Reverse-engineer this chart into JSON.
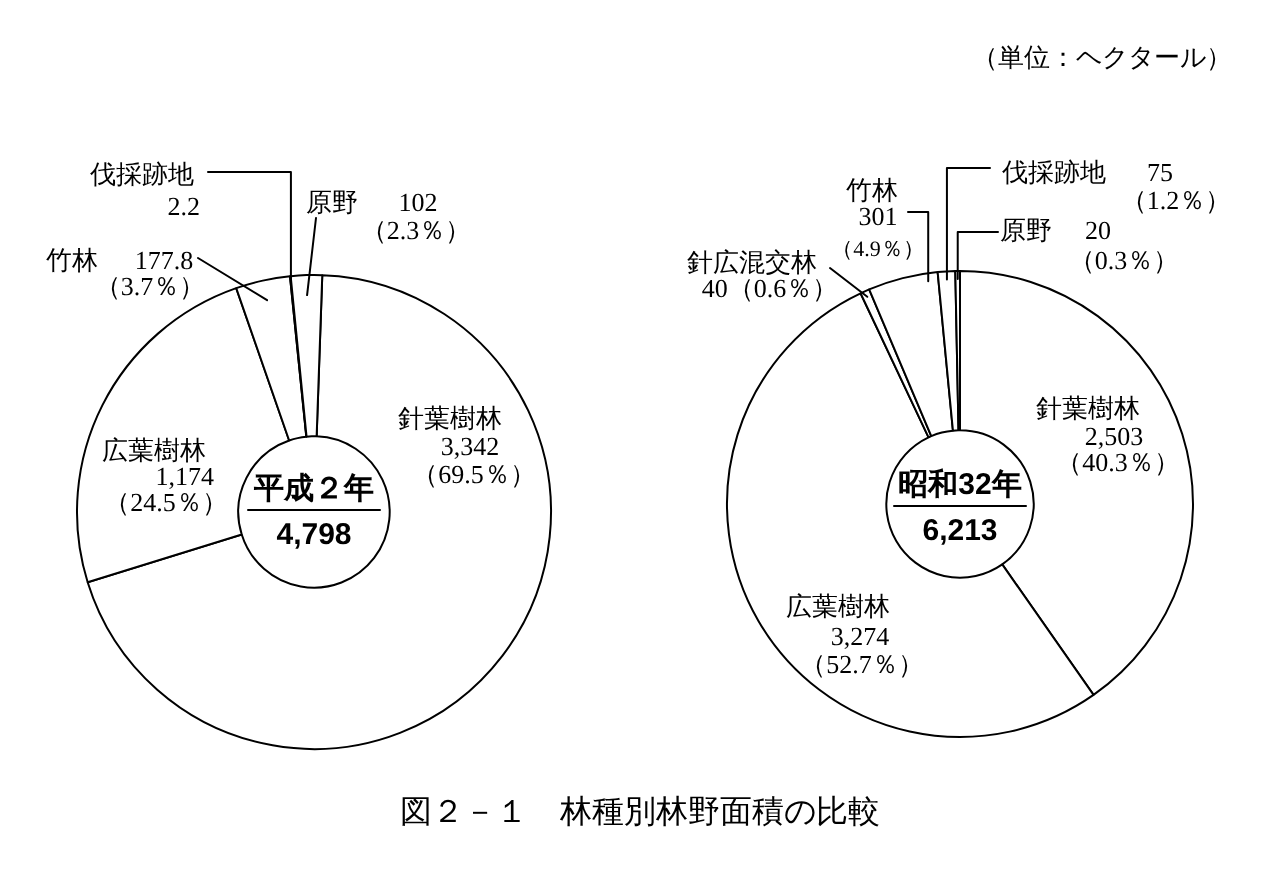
{
  "chart_data": [
    {
      "type": "donut",
      "title": "平成２年",
      "annotations": [
        "4,798",
        "図２－１　林種別林野面積の比較"
      ],
      "categories": [
        "針葉樹林",
        "広葉樹林",
        "竹林",
        "伐採跡地",
        "原野"
      ],
      "values": [
        3342,
        1174,
        177.8,
        2.2,
        102
      ],
      "colors": [
        "#ffffff",
        "#ffffff",
        "#ffffff",
        "#ffffff",
        "#ffffff"
      ],
      "value_labels": [
        "3,342（69.5％）",
        "1,174（24.5％）",
        "177.8（3.7％）",
        "2.2",
        "102（2.3％）"
      ]
    },
    {
      "type": "donut",
      "title": "昭和32年",
      "annotations": [
        "6,213",
        "（単位：ヘクタール）"
      ],
      "categories": [
        "針葉樹林",
        "広葉樹林",
        "針広混交林",
        "竹林",
        "伐採跡地",
        "原野"
      ],
      "values": [
        2503,
        3274,
        40,
        301,
        75,
        20
      ],
      "colors": [
        "#ffffff",
        "#ffffff",
        "#ffffff",
        "#ffffff",
        "#ffffff",
        "#ffffff"
      ],
      "value_labels": [
        "2,503（40.3％）",
        "3,274（52.7％）",
        "40（0.6％）",
        "301（4.9％）",
        "75（1.2％）",
        "20（0.3％）"
      ]
    }
  ]
}
